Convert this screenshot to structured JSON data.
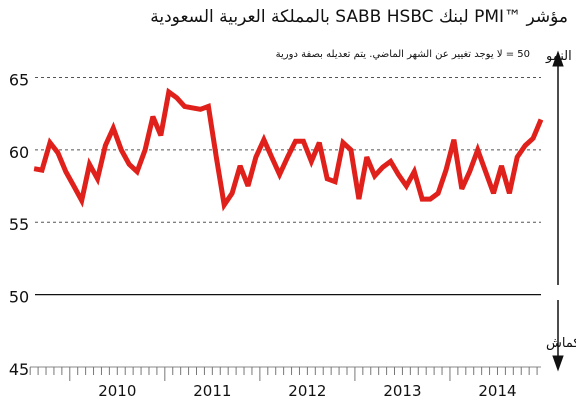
{
  "chart_data": {
    "type": "line",
    "title": "مؤشر ™PMI لبنك SABB HSBC بالمملكة العربية السعودية",
    "subtitle": "50 = لا يوجد تغيير عن الشهر الماضي. يتم تعديله بصفة دورية",
    "annotations": [
      "معدل الزيادة في النمو",
      "معدل الزيادة في الانكماش"
    ],
    "x": [
      2009.625,
      2009.708,
      2009.792,
      2009.875,
      2009.958,
      2010.042,
      2010.125,
      2010.208,
      2010.292,
      2010.375,
      2010.458,
      2010.542,
      2010.625,
      2010.708,
      2010.792,
      2010.875,
      2010.958,
      2011.042,
      2011.125,
      2011.208,
      2011.292,
      2011.375,
      2011.458,
      2011.542,
      2011.625,
      2011.708,
      2011.792,
      2011.875,
      2011.958,
      2012.042,
      2012.125,
      2012.208,
      2012.292,
      2012.375,
      2012.458,
      2012.542,
      2012.625,
      2012.708,
      2012.792,
      2012.875,
      2012.958,
      2013.042,
      2013.125,
      2013.208,
      2013.292,
      2013.375,
      2013.458,
      2013.542,
      2013.625,
      2013.708,
      2013.792,
      2013.875,
      2013.958,
      2014.042,
      2014.125,
      2014.208,
      2014.292,
      2014.375,
      2014.458,
      2014.542,
      2014.625,
      2014.708,
      2014.792,
      2014.875,
      2014.958
    ],
    "series": [
      {
        "name": "PMI",
        "color": "#e0201b",
        "values": [
          58.7,
          58.6,
          60.5,
          59.8,
          58.5,
          57.5,
          56.5,
          59,
          58,
          60.3,
          61.5,
          60,
          59,
          58.5,
          60,
          62.3,
          61,
          64,
          63.6,
          63,
          62.9,
          62.8,
          63,
          59.5,
          56.2,
          57,
          58.9,
          57.5,
          59.5,
          60.7,
          59.5,
          58.3,
          59.5,
          60.6,
          60.6,
          59.2,
          60.5,
          58,
          57.8,
          60.5,
          60,
          56.6,
          59.5,
          58.2,
          58.8,
          59.2,
          58.3,
          57.5,
          58.5,
          56.6,
          56.6,
          57,
          58.6,
          60.7,
          57.3,
          58.5,
          60,
          58.5,
          57,
          58.9,
          57,
          59.5,
          60.3,
          60.8,
          62.1
        ]
      }
    ],
    "xlim": [
      2009.35,
      2015.0
    ],
    "xticks": [
      {
        "value": 2010.5,
        "label": "2010"
      },
      {
        "value": 2011.5,
        "label": "2011"
      },
      {
        "value": 2012.5,
        "label": "2012"
      },
      {
        "value": 2013.5,
        "label": "2013"
      },
      {
        "value": 2014.5,
        "label": "2014"
      }
    ],
    "ylim": [
      45,
      66
    ],
    "yticks": [
      45,
      50,
      55,
      60,
      65
    ],
    "grid": true
  }
}
